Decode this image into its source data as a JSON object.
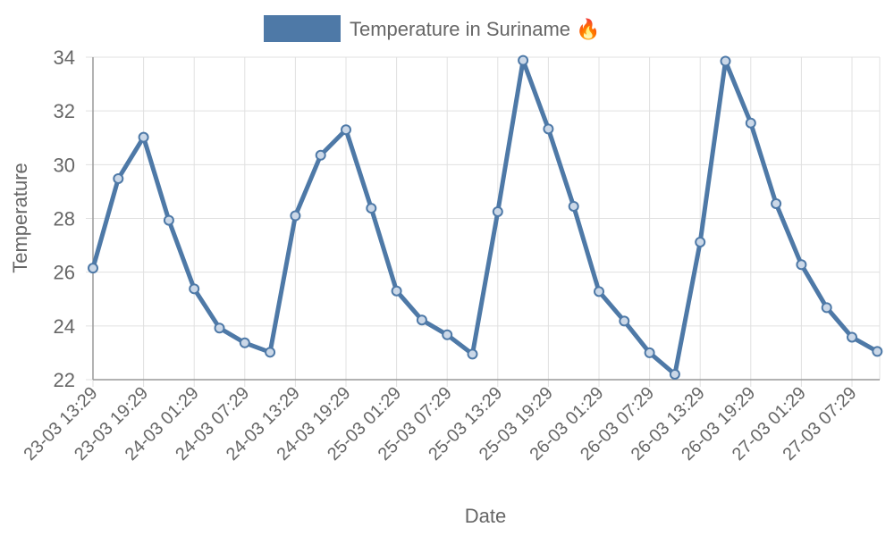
{
  "chart_data": {
    "type": "line",
    "legend": {
      "label": "Temperature in Suriname 🔥",
      "color": "#4e79a7",
      "position": "top"
    },
    "xlabel": "Date",
    "ylabel": "Temperature",
    "ylim": [
      22,
      34
    ],
    "yticks": [
      22,
      24,
      26,
      28,
      30,
      32,
      34
    ],
    "x_tick_labels": [
      "23-03 13:29",
      "23-03 19:29",
      "24-03 01:29",
      "24-03 07:29",
      "24-03 13:29",
      "24-03 19:29",
      "25-03 01:29",
      "25-03 07:29",
      "25-03 13:29",
      "25-03 19:29",
      "26-03 01:29",
      "26-03 07:29",
      "26-03 13:29",
      "26-03 19:29",
      "27-03 01:29",
      "27-03 07:29"
    ],
    "grid": true,
    "series": [
      {
        "name": "Temperature in Suriname 🔥",
        "color": "#4e79a7",
        "x": [
          "23-03 13:29",
          "23-03 16:29",
          "23-03 19:29",
          "23-03 22:29",
          "24-03 01:29",
          "24-03 04:29",
          "24-03 07:29",
          "24-03 10:29",
          "24-03 13:29",
          "24-03 16:29",
          "24-03 19:29",
          "24-03 22:29",
          "25-03 01:29",
          "25-03 04:29",
          "25-03 07:29",
          "25-03 10:29",
          "25-03 13:29",
          "25-03 16:29",
          "25-03 19:29",
          "25-03 22:29",
          "26-03 01:29",
          "26-03 04:29",
          "26-03 07:29",
          "26-03 10:29",
          "26-03 13:29",
          "26-03 16:29",
          "26-03 19:29",
          "26-03 22:29",
          "27-03 01:29",
          "27-03 04:29",
          "27-03 07:29",
          "27-03 10:29"
        ],
        "values": [
          26.15,
          29.48,
          31.02,
          27.93,
          25.38,
          23.92,
          23.37,
          23.02,
          28.1,
          30.35,
          31.3,
          28.38,
          25.3,
          24.22,
          23.67,
          22.95,
          28.25,
          33.88,
          31.33,
          28.45,
          25.28,
          24.18,
          23.0,
          22.2,
          27.12,
          33.85,
          31.55,
          28.55,
          26.28,
          24.68,
          23.58,
          23.05
        ]
      }
    ]
  }
}
